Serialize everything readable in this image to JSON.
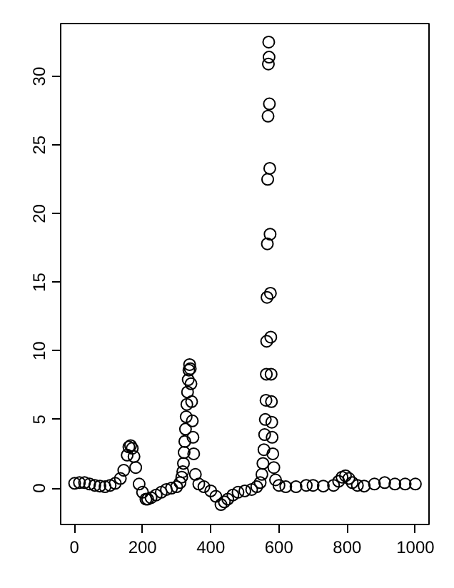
{
  "chart_data": {
    "type": "scatter",
    "marker": "circle",
    "grid": false,
    "x": [
      1,
      15,
      30,
      45,
      60,
      75,
      90,
      105,
      120,
      135,
      145,
      155,
      160,
      165,
      170,
      175,
      180,
      190,
      200,
      210,
      215,
      225,
      240,
      255,
      270,
      285,
      300,
      310,
      315,
      318,
      320,
      322,
      324,
      326,
      328,
      330,
      332,
      334,
      336,
      338,
      340,
      342,
      344,
      346,
      348,
      350,
      355,
      365,
      380,
      400,
      415,
      430,
      440,
      450,
      465,
      480,
      500,
      520,
      535,
      545,
      550,
      553,
      556,
      558,
      560,
      562,
      563,
      564,
      565,
      566,
      567,
      568,
      569,
      570,
      571,
      572,
      573,
      574,
      575,
      576,
      577,
      578,
      579,
      580,
      582,
      585,
      590,
      600,
      620,
      650,
      680,
      700,
      730,
      760,
      775,
      785,
      795,
      805,
      815,
      830,
      850,
      880,
      910,
      940,
      970,
      1000
    ],
    "series": [
      {
        "color": "#000000",
        "values": [
          0.35,
          0.4,
          0.4,
          0.3,
          0.2,
          0.15,
          0.1,
          0.2,
          0.35,
          0.7,
          1.3,
          2.4,
          3,
          3.1,
          2.9,
          2.3,
          1.5,
          0.3,
          -0.3,
          -0.8,
          -0.8,
          -0.7,
          -0.5,
          -0.3,
          -0.1,
          0,
          0.1,
          0.4,
          0.8,
          1.2,
          1.8,
          2.6,
          3.4,
          4.3,
          5.2,
          6.1,
          7,
          7.9,
          8.6,
          9.0,
          8.7,
          7.6,
          6.3,
          4.9,
          3.7,
          2.5,
          1,
          0.3,
          0.1,
          -0.2,
          -0.6,
          -1.2,
          -1,
          -0.8,
          -0.5,
          -0.3,
          -0.2,
          -0.1,
          0.1,
          0.4,
          1,
          1.8,
          2.8,
          3.9,
          5,
          6.4,
          8.3,
          10.7,
          13.9,
          17.8,
          22.5,
          27.1,
          30.9,
          32.5,
          31.4,
          28,
          23.3,
          18.5,
          14.2,
          11,
          8.3,
          6.3,
          4.8,
          3.7,
          2.5,
          1.5,
          0.6,
          0.2,
          0.1,
          0.1,
          0.2,
          0.2,
          0.15,
          0.2,
          0.5,
          0.8,
          0.9,
          0.7,
          0.4,
          0.2,
          0.15,
          0.3,
          0.4,
          0.3,
          0.3,
          0.3
        ]
      }
    ],
    "xlim": [
      -40,
      1040
    ],
    "ylim": [
      -2.65,
      33.85
    ],
    "xticks": [
      0,
      200,
      400,
      600,
      800,
      1000
    ],
    "yticks": [
      0,
      5,
      10,
      15,
      20,
      25,
      30
    ]
  }
}
